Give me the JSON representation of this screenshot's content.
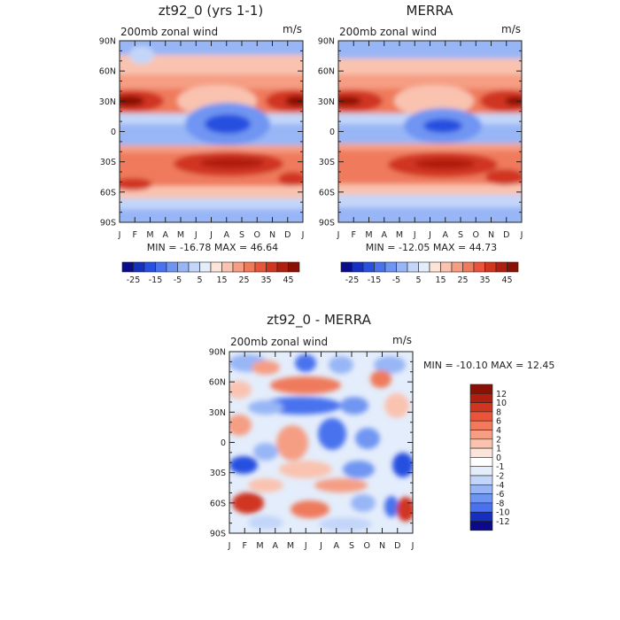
{
  "chart_data": [
    {
      "type": "heatmap",
      "title": "zt92_0 (yrs 1-1)",
      "left_label": "200mb zonal wind",
      "right_label": "m/s",
      "stats_text": "MIN = -16.78 MAX =  46.64",
      "xlabels": [
        "J",
        "F",
        "M",
        "A",
        "M",
        "J",
        "J",
        "A",
        "S",
        "O",
        "N",
        "D",
        "J"
      ],
      "ylabels": [
        "90N",
        "60N",
        "30N",
        "0",
        "30S",
        "60S",
        "90S"
      ],
      "colorbar_labels": [
        "-25",
        "-15",
        "-5",
        "5",
        "15",
        "25",
        "35",
        "45"
      ],
      "colorbar_levels": [
        -30,
        -25,
        -20,
        -15,
        -10,
        -5,
        0,
        5,
        10,
        15,
        20,
        25,
        30,
        35,
        40,
        45
      ],
      "colorbar_colors": [
        "#0a0a8a",
        "#1530c0",
        "#2850e0",
        "#4a72ee",
        "#6f95f2",
        "#98b6f6",
        "#c3d6f9",
        "#e4edfb",
        "#fde4d8",
        "#f9c3b0",
        "#f59e84",
        "#ef7a5c",
        "#e8553a",
        "#d03520",
        "#b01e10",
        "#8a0f05"
      ],
      "ylim": [
        -90,
        90
      ],
      "xlim": [
        "J",
        "J"
      ]
    },
    {
      "type": "heatmap",
      "title": "MERRA",
      "left_label": "200mb zonal wind",
      "right_label": "m/s",
      "stats_text": "MIN = -12.05 MAX =  44.73",
      "xlabels": [
        "J",
        "F",
        "M",
        "A",
        "M",
        "J",
        "J",
        "A",
        "S",
        "O",
        "N",
        "D",
        "J"
      ],
      "ylabels": [
        "90N",
        "60N",
        "30N",
        "0",
        "30S",
        "60S",
        "90S"
      ],
      "colorbar_labels": [
        "-25",
        "-15",
        "-5",
        "5",
        "15",
        "25",
        "35",
        "45"
      ],
      "colorbar_levels": [
        -30,
        -25,
        -20,
        -15,
        -10,
        -5,
        0,
        5,
        10,
        15,
        20,
        25,
        30,
        35,
        40,
        45
      ],
      "ylim": [
        -90,
        90
      ]
    },
    {
      "type": "heatmap",
      "title": "zt92_0 - MERRA",
      "left_label": "200mb zonal wind",
      "right_label": "m/s",
      "stats_text": "MIN = -10.10 MAX =  12.45",
      "xlabels": [
        "J",
        "F",
        "M",
        "A",
        "M",
        "J",
        "J",
        "A",
        "S",
        "O",
        "N",
        "D",
        "J"
      ],
      "ylabels": [
        "90N",
        "60N",
        "30N",
        "0",
        "30S",
        "60S",
        "90S"
      ],
      "colorbar_labels": [
        "12",
        "10",
        "8",
        "6",
        "4",
        "2",
        "1",
        "0",
        "-1",
        "-2",
        "-4",
        "-6",
        "-8",
        "-10",
        "-12"
      ],
      "colorbar_colors": [
        "#8a0f05",
        "#b01e10",
        "#d03520",
        "#e8553a",
        "#ef7a5c",
        "#f59e84",
        "#f9c3b0",
        "#fde4d8",
        "#ffffff",
        "#e4edfb",
        "#c3d6f9",
        "#98b6f6",
        "#6f95f2",
        "#4a72ee",
        "#1530c0",
        "#0a0a8a"
      ],
      "ylim": [
        -90,
        90
      ]
    }
  ]
}
